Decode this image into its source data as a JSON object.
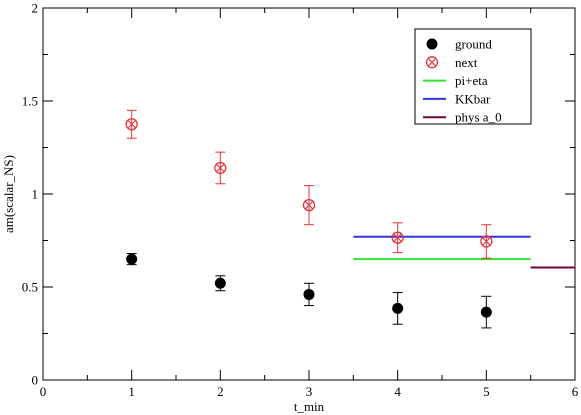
{
  "chart_data": {
    "type": "scatter",
    "xlabel": "t_min",
    "ylabel": "am(scalar_NS)",
    "xlim": [
      0,
      6
    ],
    "ylim": [
      0,
      2
    ],
    "x_ticks": [
      "0",
      "1",
      "2",
      "3",
      "4",
      "5",
      "6"
    ],
    "y_ticks": [
      "0",
      "0.5",
      "1",
      "1.5",
      "2"
    ],
    "grid": false,
    "legend_position": "top-right",
    "series": [
      {
        "name": "ground",
        "marker": "filled-circle",
        "color": "#000000",
        "points": [
          {
            "x": 1,
            "y": 0.65,
            "err": 0.03
          },
          {
            "x": 2,
            "y": 0.52,
            "err": 0.04
          },
          {
            "x": 3,
            "y": 0.46,
            "err": 0.06
          },
          {
            "x": 4,
            "y": 0.385,
            "err": 0.085
          },
          {
            "x": 5,
            "y": 0.365,
            "err": 0.085
          }
        ]
      },
      {
        "name": "next",
        "marker": "crossed-circle",
        "color": "#e8333a",
        "points": [
          {
            "x": 1,
            "y": 1.375,
            "err": 0.075
          },
          {
            "x": 2,
            "y": 1.14,
            "err": 0.085
          },
          {
            "x": 3,
            "y": 0.94,
            "err": 0.105
          },
          {
            "x": 4,
            "y": 0.765,
            "err": 0.08
          },
          {
            "x": 5,
            "y": 0.745,
            "err": 0.09
          }
        ]
      }
    ],
    "lines": [
      {
        "name": "pi+eta",
        "color": "#33e033",
        "x": [
          3.5,
          5.5
        ],
        "y": 0.65
      },
      {
        "name": "KKbar",
        "color": "#3333dd",
        "x": [
          3.5,
          5.5
        ],
        "y": 0.77
      },
      {
        "name": "phys a_0",
        "color": "#770033",
        "x": [
          5.5,
          6.0
        ],
        "y": 0.605
      }
    ]
  }
}
